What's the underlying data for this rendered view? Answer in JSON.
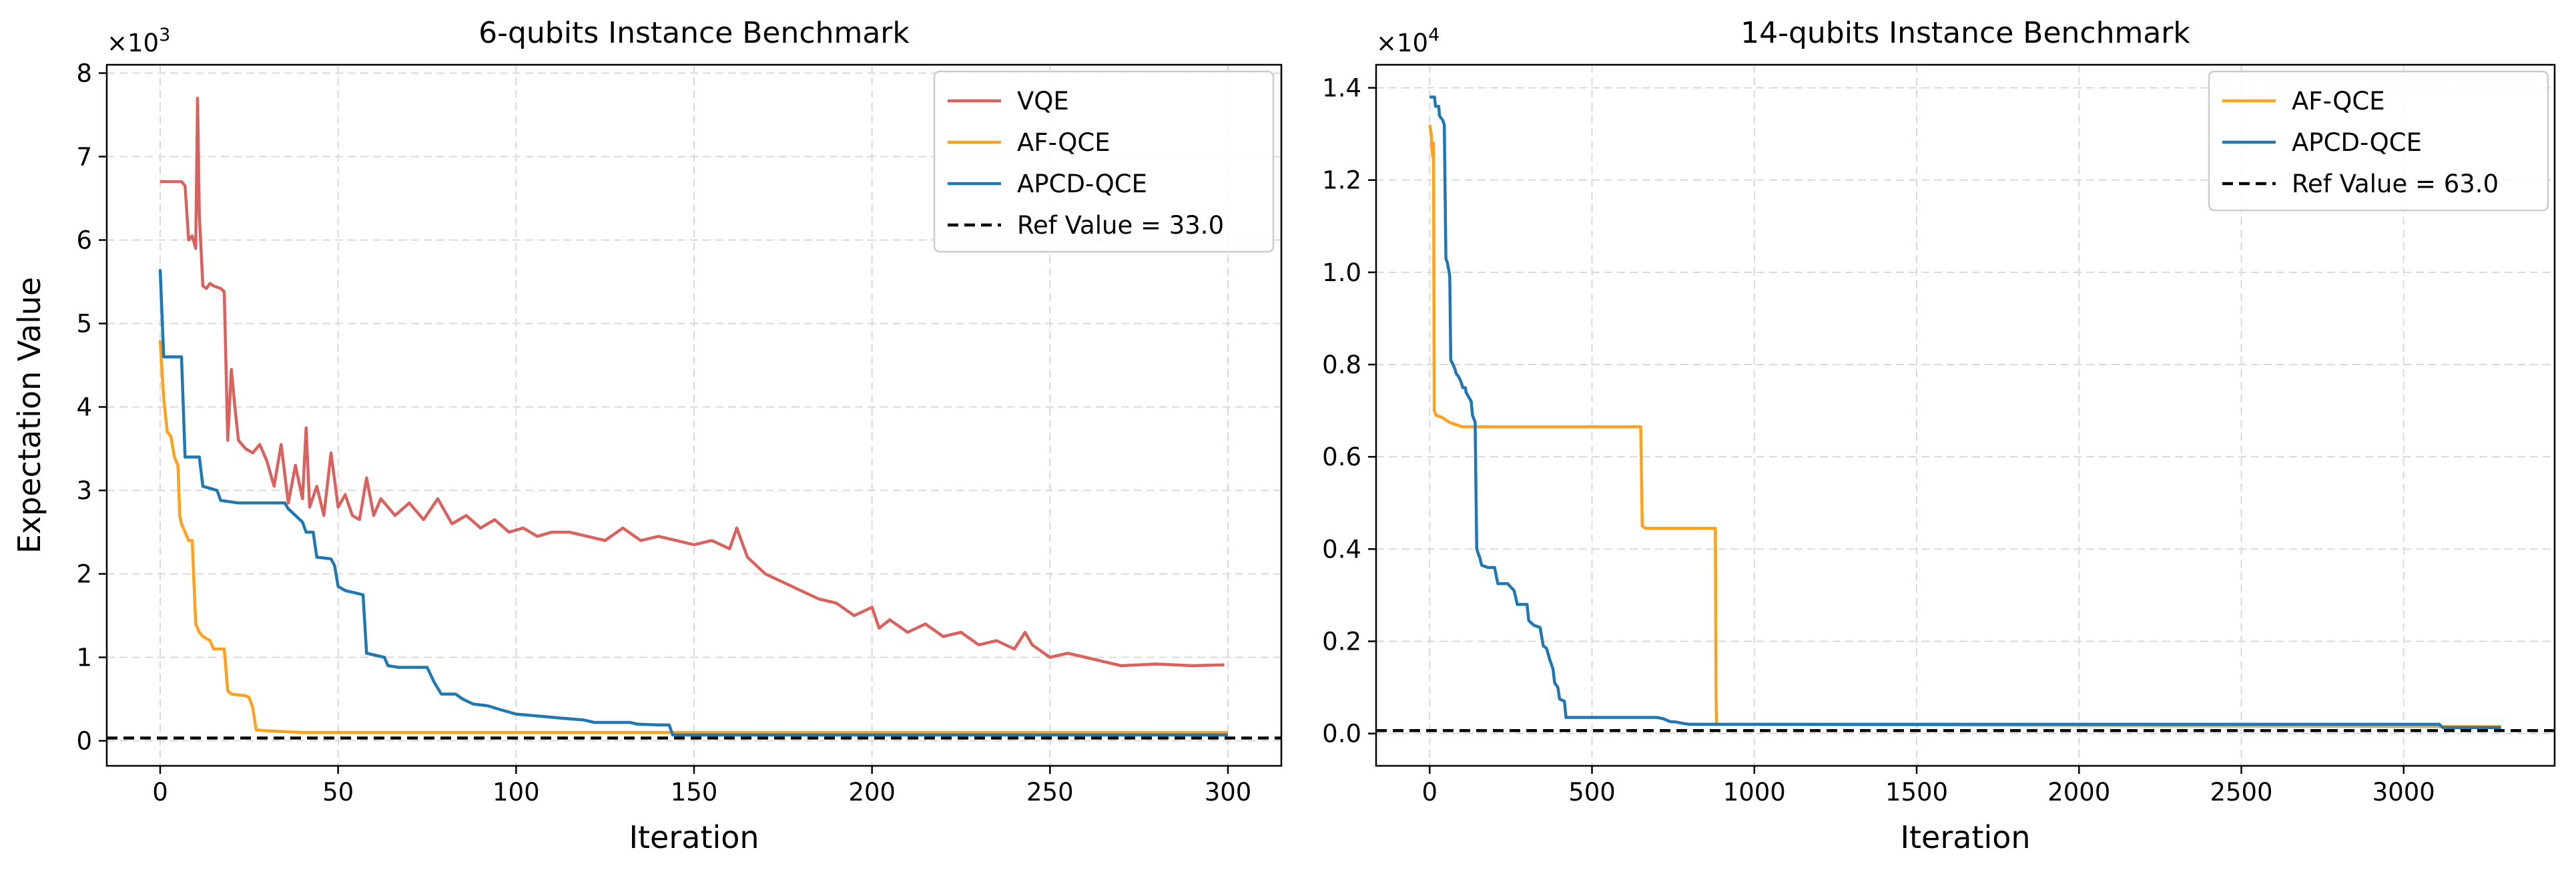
{
  "chart_data": [
    {
      "type": "line",
      "title": "6-qubits Instance Benchmark",
      "xlabel": "Iteration",
      "ylabel": "Expectation Value",
      "y_multiplier": "×10",
      "y_multiplier_exp": "3",
      "xlim": [
        -15,
        315
      ],
      "ylim": [
        -300,
        8100
      ],
      "xticks": [
        0,
        50,
        100,
        150,
        200,
        250,
        300
      ],
      "xtick_labels": [
        "0",
        "50",
        "100",
        "150",
        "200",
        "250",
        "300"
      ],
      "yticks": [
        0,
        1000,
        2000,
        3000,
        4000,
        5000,
        6000,
        7000,
        8000
      ],
      "ytick_labels": [
        "0",
        "1",
        "2",
        "3",
        "4",
        "5",
        "6",
        "7",
        "8"
      ],
      "grid": true,
      "legend_position": "top-right",
      "reference": {
        "label": "Ref Value = 33.0",
        "value": 33.0,
        "color": "#000000",
        "style": "dashed"
      },
      "series": [
        {
          "name": "VQE",
          "color": "#d9625e",
          "points": [
            [
              0,
              6700
            ],
            [
              6,
              6700
            ],
            [
              7,
              6650
            ],
            [
              8,
              6000
            ],
            [
              9,
              6050
            ],
            [
              10,
              5900
            ],
            [
              10.5,
              7700
            ],
            [
              11,
              6300
            ],
            [
              12,
              5450
            ],
            [
              13,
              5420
            ],
            [
              14,
              5480
            ],
            [
              15,
              5450
            ],
            [
              17,
              5420
            ],
            [
              18,
              5380
            ],
            [
              19,
              3600
            ],
            [
              20,
              4450
            ],
            [
              21,
              4000
            ],
            [
              22,
              3600
            ],
            [
              24,
              3500
            ],
            [
              26,
              3450
            ],
            [
              28,
              3550
            ],
            [
              30,
              3350
            ],
            [
              32,
              3050
            ],
            [
              34,
              3550
            ],
            [
              36,
              2850
            ],
            [
              38,
              3300
            ],
            [
              40,
              2900
            ],
            [
              41,
              3750
            ],
            [
              42,
              2800
            ],
            [
              44,
              3050
            ],
            [
              46,
              2700
            ],
            [
              48,
              3450
            ],
            [
              50,
              2800
            ],
            [
              52,
              2950
            ],
            [
              54,
              2700
            ],
            [
              56,
              2650
            ],
            [
              58,
              3150
            ],
            [
              60,
              2700
            ],
            [
              62,
              2900
            ],
            [
              66,
              2700
            ],
            [
              70,
              2850
            ],
            [
              74,
              2650
            ],
            [
              78,
              2900
            ],
            [
              82,
              2600
            ],
            [
              86,
              2700
            ],
            [
              90,
              2550
            ],
            [
              94,
              2650
            ],
            [
              98,
              2500
            ],
            [
              102,
              2550
            ],
            [
              106,
              2450
            ],
            [
              110,
              2500
            ],
            [
              115,
              2500
            ],
            [
              120,
              2450
            ],
            [
              125,
              2400
            ],
            [
              130,
              2550
            ],
            [
              135,
              2400
            ],
            [
              140,
              2450
            ],
            [
              145,
              2400
            ],
            [
              150,
              2350
            ],
            [
              155,
              2400
            ],
            [
              160,
              2300
            ],
            [
              162,
              2550
            ],
            [
              165,
              2200
            ],
            [
              170,
              2000
            ],
            [
              175,
              1900
            ],
            [
              180,
              1800
            ],
            [
              185,
              1700
            ],
            [
              190,
              1650
            ],
            [
              195,
              1500
            ],
            [
              200,
              1600
            ],
            [
              202,
              1350
            ],
            [
              205,
              1450
            ],
            [
              210,
              1300
            ],
            [
              215,
              1400
            ],
            [
              220,
              1250
            ],
            [
              225,
              1300
            ],
            [
              230,
              1150
            ],
            [
              235,
              1200
            ],
            [
              240,
              1100
            ],
            [
              243,
              1300
            ],
            [
              245,
              1150
            ],
            [
              250,
              1000
            ],
            [
              255,
              1050
            ],
            [
              260,
              1000
            ],
            [
              265,
              950
            ],
            [
              270,
              900
            ],
            [
              280,
              920
            ],
            [
              290,
              900
            ],
            [
              299,
              910
            ]
          ]
        },
        {
          "name": "AF-QCE",
          "color": "#ffa11b",
          "points": [
            [
              0,
              4800
            ],
            [
              1,
              4100
            ],
            [
              2,
              3700
            ],
            [
              3,
              3650
            ],
            [
              4,
              3400
            ],
            [
              5,
              3300
            ],
            [
              5.5,
              2700
            ],
            [
              6,
              2600
            ],
            [
              7,
              2500
            ],
            [
              8,
              2400
            ],
            [
              9,
              2400
            ],
            [
              10,
              1400
            ],
            [
              11,
              1300
            ],
            [
              12,
              1250
            ],
            [
              14,
              1200
            ],
            [
              15,
              1100
            ],
            [
              18,
              1100
            ],
            [
              19,
              600
            ],
            [
              20,
              560
            ],
            [
              24,
              540
            ],
            [
              25,
              520
            ],
            [
              26,
              400
            ],
            [
              27,
              130
            ],
            [
              30,
              120
            ],
            [
              35,
              110
            ],
            [
              40,
              100
            ],
            [
              300,
              100
            ]
          ]
        },
        {
          "name": "APCD-QCE",
          "color": "#1f77b4",
          "points": [
            [
              0,
              5650
            ],
            [
              1,
              4600
            ],
            [
              6,
              4600
            ],
            [
              7,
              3400
            ],
            [
              11,
              3400
            ],
            [
              12,
              3050
            ],
            [
              16,
              3000
            ],
            [
              17,
              2880
            ],
            [
              22,
              2850
            ],
            [
              35,
              2850
            ],
            [
              36,
              2780
            ],
            [
              40,
              2620
            ],
            [
              41,
              2500
            ],
            [
              43,
              2500
            ],
            [
              44,
              2200
            ],
            [
              48,
              2180
            ],
            [
              49,
              2100
            ],
            [
              50,
              1850
            ],
            [
              52,
              1800
            ],
            [
              54,
              1780
            ],
            [
              57,
              1750
            ],
            [
              58,
              1050
            ],
            [
              63,
              1000
            ],
            [
              64,
              900
            ],
            [
              67,
              880
            ],
            [
              75,
              880
            ],
            [
              77,
              700
            ],
            [
              79,
              560
            ],
            [
              83,
              560
            ],
            [
              85,
              500
            ],
            [
              88,
              440
            ],
            [
              92,
              420
            ],
            [
              95,
              380
            ],
            [
              100,
              320
            ],
            [
              108,
              290
            ],
            [
              113,
              270
            ],
            [
              119,
              250
            ],
            [
              122,
              220
            ],
            [
              132,
              220
            ],
            [
              134,
              200
            ],
            [
              140,
              190
            ],
            [
              143,
              190
            ],
            [
              144,
              70
            ],
            [
              300,
              70
            ]
          ]
        }
      ]
    },
    {
      "type": "line",
      "title": "14-qubits Instance Benchmark",
      "xlabel": "Iteration",
      "ylabel": "",
      "y_multiplier": "×10",
      "y_multiplier_exp": "4",
      "xlim": [
        -165,
        3465
      ],
      "ylim": [
        -700,
        14500
      ],
      "xticks": [
        0,
        500,
        1000,
        1500,
        2000,
        2500,
        3000
      ],
      "xtick_labels": [
        "0",
        "500",
        "1000",
        "1500",
        "2000",
        "2500",
        "3000"
      ],
      "yticks": [
        0,
        2000,
        4000,
        6000,
        8000,
        10000,
        12000,
        14000
      ],
      "ytick_labels": [
        "0.0",
        "0.2",
        "0.4",
        "0.6",
        "0.8",
        "1.0",
        "1.2",
        "1.4"
      ],
      "grid": true,
      "legend_position": "top-right",
      "reference": {
        "label": "Ref Value = 63.0",
        "value": 63.0,
        "color": "#000000",
        "style": "dashed"
      },
      "series": [
        {
          "name": "AF-QCE",
          "color": "#ffa11b",
          "points": [
            [
              0,
              13200
            ],
            [
              5,
              13000
            ],
            [
              8,
              12600
            ],
            [
              10,
              12500
            ],
            [
              12,
              12800
            ],
            [
              14,
              7000
            ],
            [
              20,
              6900
            ],
            [
              40,
              6850
            ],
            [
              60,
              6750
            ],
            [
              80,
              6700
            ],
            [
              100,
              6650
            ],
            [
              650,
              6650
            ],
            [
              655,
              4500
            ],
            [
              665,
              4450
            ],
            [
              880,
              4450
            ],
            [
              882,
              800
            ],
            [
              884,
              200
            ],
            [
              3300,
              150
            ]
          ]
        },
        {
          "name": "APCD-QCE",
          "color": "#1f77b4",
          "points": [
            [
              0,
              13800
            ],
            [
              15,
              13800
            ],
            [
              18,
              13600
            ],
            [
              28,
              13600
            ],
            [
              30,
              13400
            ],
            [
              40,
              13300
            ],
            [
              45,
              13200
            ],
            [
              50,
              10300
            ],
            [
              55,
              10200
            ],
            [
              60,
              10000
            ],
            [
              62,
              9900
            ],
            [
              65,
              8100
            ],
            [
              72,
              8000
            ],
            [
              78,
              7900
            ],
            [
              82,
              7800
            ],
            [
              88,
              7750
            ],
            [
              92,
              7700
            ],
            [
              98,
              7600
            ],
            [
              102,
              7500
            ],
            [
              110,
              7500
            ],
            [
              112,
              7400
            ],
            [
              120,
              7300
            ],
            [
              128,
              7200
            ],
            [
              132,
              6900
            ],
            [
              140,
              6750
            ],
            [
              145,
              4000
            ],
            [
              150,
              3900
            ],
            [
              155,
              3800
            ],
            [
              160,
              3650
            ],
            [
              180,
              3600
            ],
            [
              200,
              3600
            ],
            [
              210,
              3250
            ],
            [
              240,
              3250
            ],
            [
              260,
              3100
            ],
            [
              270,
              2800
            ],
            [
              300,
              2800
            ],
            [
              305,
              2450
            ],
            [
              320,
              2350
            ],
            [
              340,
              2300
            ],
            [
              350,
              1900
            ],
            [
              360,
              1850
            ],
            [
              370,
              1600
            ],
            [
              380,
              1400
            ],
            [
              385,
              1100
            ],
            [
              395,
              1000
            ],
            [
              400,
              750
            ],
            [
              415,
              700
            ],
            [
              420,
              350
            ],
            [
              700,
              350
            ],
            [
              720,
              320
            ],
            [
              740,
              260
            ],
            [
              760,
              250
            ],
            [
              780,
              220
            ],
            [
              800,
              200
            ],
            [
              3110,
              200
            ],
            [
              3120,
              130
            ],
            [
              3300,
              130
            ]
          ]
        }
      ]
    }
  ]
}
